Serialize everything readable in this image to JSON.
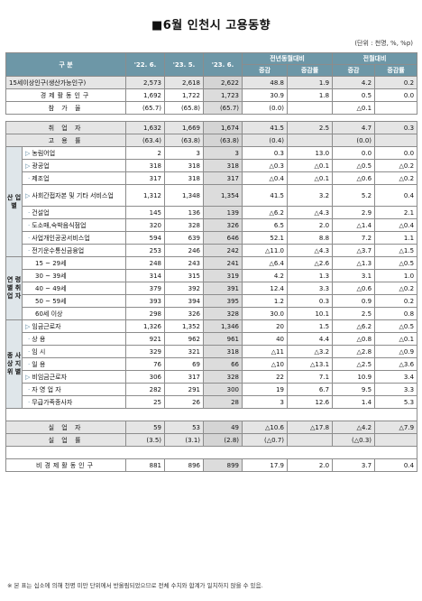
{
  "title": "■6월 인천시 고용동향",
  "unit": "(단위 : 천명, %, %p)",
  "header": {
    "category": "구    분",
    "col1": "'22. 6.",
    "col2": "'23. 5.",
    "col3": "'23. 6.",
    "yoy": "전년동월대비",
    "mom": "전월대비",
    "inc": "증감",
    "rate": "증감률"
  },
  "rows": {
    "pop15": {
      "label": "15세이상인구(생산가능인구)",
      "v": [
        "2,573",
        "2,618",
        "2,622",
        "48.8",
        "1.9",
        "4.2",
        "0.2"
      ]
    },
    "active": {
      "label": "경제활동인구",
      "v": [
        "1,692",
        "1,722",
        "1,723",
        "30.9",
        "1.8",
        "0.5",
        "0.0"
      ]
    },
    "part": {
      "label": "참 가 율",
      "v": [
        "(65.7)",
        "(65.8)",
        "(65.7)",
        "(0.0)",
        "",
        "△0.1",
        ""
      ]
    },
    "emp": {
      "label": "취 업 자",
      "v": [
        "1,632",
        "1,669",
        "1,674",
        "41.5",
        "2.5",
        "4.7",
        "0.3"
      ]
    },
    "emprate": {
      "label": "고 용 률",
      "v": [
        "(63.4)",
        "(63.8)",
        "(63.8)",
        "(0.4)",
        "",
        "(0.0)",
        ""
      ]
    },
    "ind1": {
      "label": "농림어업",
      "v": [
        "2",
        "3",
        "3",
        "0.3",
        "13.0",
        "0.0",
        "0.0"
      ]
    },
    "ind2": {
      "label": "광공업",
      "v": [
        "318",
        "318",
        "318",
        "△0.3",
        "△0.1",
        "△0.5",
        "△0.2"
      ]
    },
    "ind3": {
      "label": "제조업",
      "v": [
        "317",
        "318",
        "317",
        "△0.4",
        "△0.1",
        "△0.6",
        "△0.2"
      ]
    },
    "ind4": {
      "label": "사회간접자본 및 기타 서비스업",
      "v": [
        "1,312",
        "1,348",
        "1,354",
        "41.5",
        "3.2",
        "5.2",
        "0.4"
      ]
    },
    "ind5": {
      "label": "건설업",
      "v": [
        "145",
        "136",
        "139",
        "△6.2",
        "△4.3",
        "2.9",
        "2.1"
      ]
    },
    "ind6": {
      "label": "도소매,숙박음식점업",
      "v": [
        "320",
        "328",
        "326",
        "6.5",
        "2.0",
        "△1.4",
        "△0.4"
      ]
    },
    "ind7": {
      "label": "사업개인공공서비스업",
      "v": [
        "594",
        "639",
        "646",
        "52.1",
        "8.8",
        "7.2",
        "1.1"
      ]
    },
    "ind8": {
      "label": "전기운수통신금융업",
      "v": [
        "253",
        "246",
        "242",
        "△11.0",
        "△4.3",
        "△3.7",
        "△1.5"
      ]
    },
    "age1": {
      "label": "15 ~ 29세",
      "v": [
        "248",
        "243",
        "241",
        "△6.4",
        "△2.6",
        "△1.3",
        "△0.5"
      ]
    },
    "age2": {
      "label": "30 ~ 39세",
      "v": [
        "314",
        "315",
        "319",
        "4.2",
        "1.3",
        "3.1",
        "1.0"
      ]
    },
    "age3": {
      "label": "40 ~ 49세",
      "v": [
        "379",
        "392",
        "391",
        "12.4",
        "3.3",
        "△0.6",
        "△0.2"
      ]
    },
    "age4": {
      "label": "50 ~ 59세",
      "v": [
        "393",
        "394",
        "395",
        "1.2",
        "0.3",
        "0.9",
        "0.2"
      ]
    },
    "age5": {
      "label": "60세 이상",
      "v": [
        "298",
        "326",
        "328",
        "30.0",
        "10.1",
        "2.5",
        "0.8"
      ]
    },
    "st1": {
      "label": "임금근로자",
      "v": [
        "1,326",
        "1,352",
        "1,346",
        "20",
        "1.5",
        "△6.2",
        "△0.5"
      ]
    },
    "st2": {
      "label": "상          용",
      "v": [
        "921",
        "962",
        "961",
        "40",
        "4.4",
        "△0.8",
        "△0.1"
      ]
    },
    "st3": {
      "label": "임          시",
      "v": [
        "329",
        "321",
        "318",
        "△11",
        "△3.2",
        "△2.8",
        "△0.9"
      ]
    },
    "st4": {
      "label": "일          용",
      "v": [
        "76",
        "69",
        "66",
        "△10",
        "△13.1",
        "△2.5",
        "△3.6"
      ]
    },
    "st5": {
      "label": "비임금근로자",
      "v": [
        "306",
        "317",
        "328",
        "22",
        "7.1",
        "10.9",
        "3.4"
      ]
    },
    "st6": {
      "label": "자 영 업 자",
      "v": [
        "282",
        "291",
        "300",
        "19",
        "6.7",
        "9.5",
        "3.3"
      ]
    },
    "st7": {
      "label": "무급가족종사자",
      "v": [
        "25",
        "26",
        "28",
        "3",
        "12.6",
        "1.4",
        "5.3"
      ]
    },
    "unemp": {
      "label": "실 업 자",
      "v": [
        "59",
        "53",
        "49",
        "△10.6",
        "△17.8",
        "△4.2",
        "△7.9"
      ]
    },
    "unemprate": {
      "label": "실 업 률",
      "v": [
        "(3.5)",
        "(3.1)",
        "(2.8)",
        "(△0.7)",
        "",
        "(△0.3)",
        ""
      ]
    },
    "inactive": {
      "label": "비경제활동인구",
      "v": [
        "881",
        "896",
        "899",
        "17.9",
        "2.0",
        "3.7",
        "0.4"
      ]
    }
  },
  "groups": {
    "industry": "산 업 별",
    "age": "연 령 별 취 업 자",
    "status": "종 사 상 지 위 별"
  },
  "note": "※ 본 표는 십소에 의해 천명 미만 단위에서 반올림되었으므로 전체 수치와 합계가 일치하지 않을 수 있음."
}
